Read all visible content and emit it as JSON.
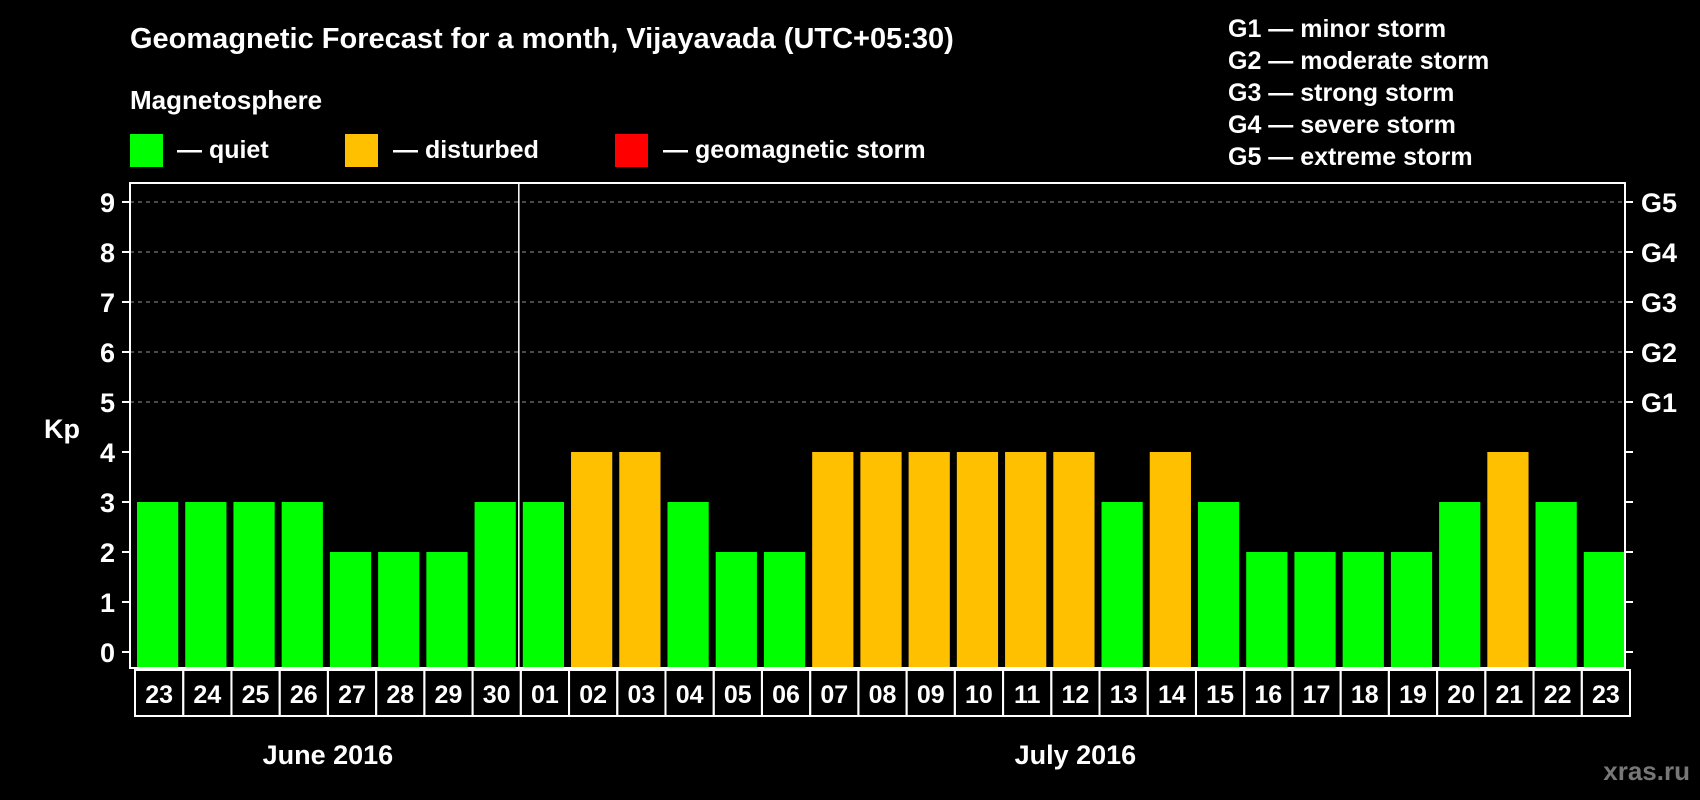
{
  "title": "Geomagnetic Forecast for a month, Vijayavada (UTC+05:30)",
  "subtitle": "Magnetosphere",
  "legend": [
    {
      "label": "— quiet",
      "color": "#00FF00"
    },
    {
      "label": "— disturbed",
      "color": "#FFC000"
    },
    {
      "label": "— geomagnetic storm",
      "color": "#FF0000"
    }
  ],
  "storm_legend": [
    "G1 — minor storm",
    "G2 — moderate storm",
    "G3 — strong storm",
    "G4 — severe storm",
    "G5 — extreme storm"
  ],
  "watermark": "xras.ru",
  "colors": {
    "quiet": "#00FF00",
    "disturbed": "#FFC000",
    "storm": "#FF0000",
    "grid": "#777777",
    "background": "#000000",
    "axis": "#FFFFFF"
  },
  "chart_data": {
    "type": "bar",
    "ylabel": "Kp",
    "ylim": [
      0,
      9
    ],
    "yticks": [
      0,
      1,
      2,
      3,
      4,
      5,
      6,
      7,
      8,
      9
    ],
    "right_ticks": [
      {
        "value": 5,
        "label": "G1"
      },
      {
        "value": 6,
        "label": "G2"
      },
      {
        "value": 7,
        "label": "G3"
      },
      {
        "value": 8,
        "label": "G4"
      },
      {
        "value": 9,
        "label": "G5"
      }
    ],
    "categories": [
      "23",
      "24",
      "25",
      "26",
      "27",
      "28",
      "29",
      "30",
      "01",
      "02",
      "03",
      "04",
      "05",
      "06",
      "07",
      "08",
      "09",
      "10",
      "11",
      "12",
      "13",
      "14",
      "15",
      "16",
      "17",
      "18",
      "19",
      "20",
      "21",
      "22",
      "23"
    ],
    "values": [
      3,
      3,
      3,
      3,
      2,
      2,
      2,
      3,
      3,
      4,
      4,
      3,
      2,
      2,
      4,
      4,
      4,
      4,
      4,
      4,
      3,
      4,
      3,
      2,
      2,
      2,
      2,
      3,
      4,
      3,
      2
    ],
    "levels": [
      "quiet",
      "quiet",
      "quiet",
      "quiet",
      "quiet",
      "quiet",
      "quiet",
      "quiet",
      "quiet",
      "disturbed",
      "disturbed",
      "quiet",
      "quiet",
      "quiet",
      "disturbed",
      "disturbed",
      "disturbed",
      "disturbed",
      "disturbed",
      "disturbed",
      "quiet",
      "disturbed",
      "quiet",
      "quiet",
      "quiet",
      "quiet",
      "quiet",
      "quiet",
      "disturbed",
      "quiet",
      "quiet"
    ],
    "months": [
      {
        "label": "June 2016",
        "start": 0,
        "end": 7
      },
      {
        "label": "July 2016",
        "start": 8,
        "end": 30
      }
    ],
    "month_separator_after_index": 7
  }
}
